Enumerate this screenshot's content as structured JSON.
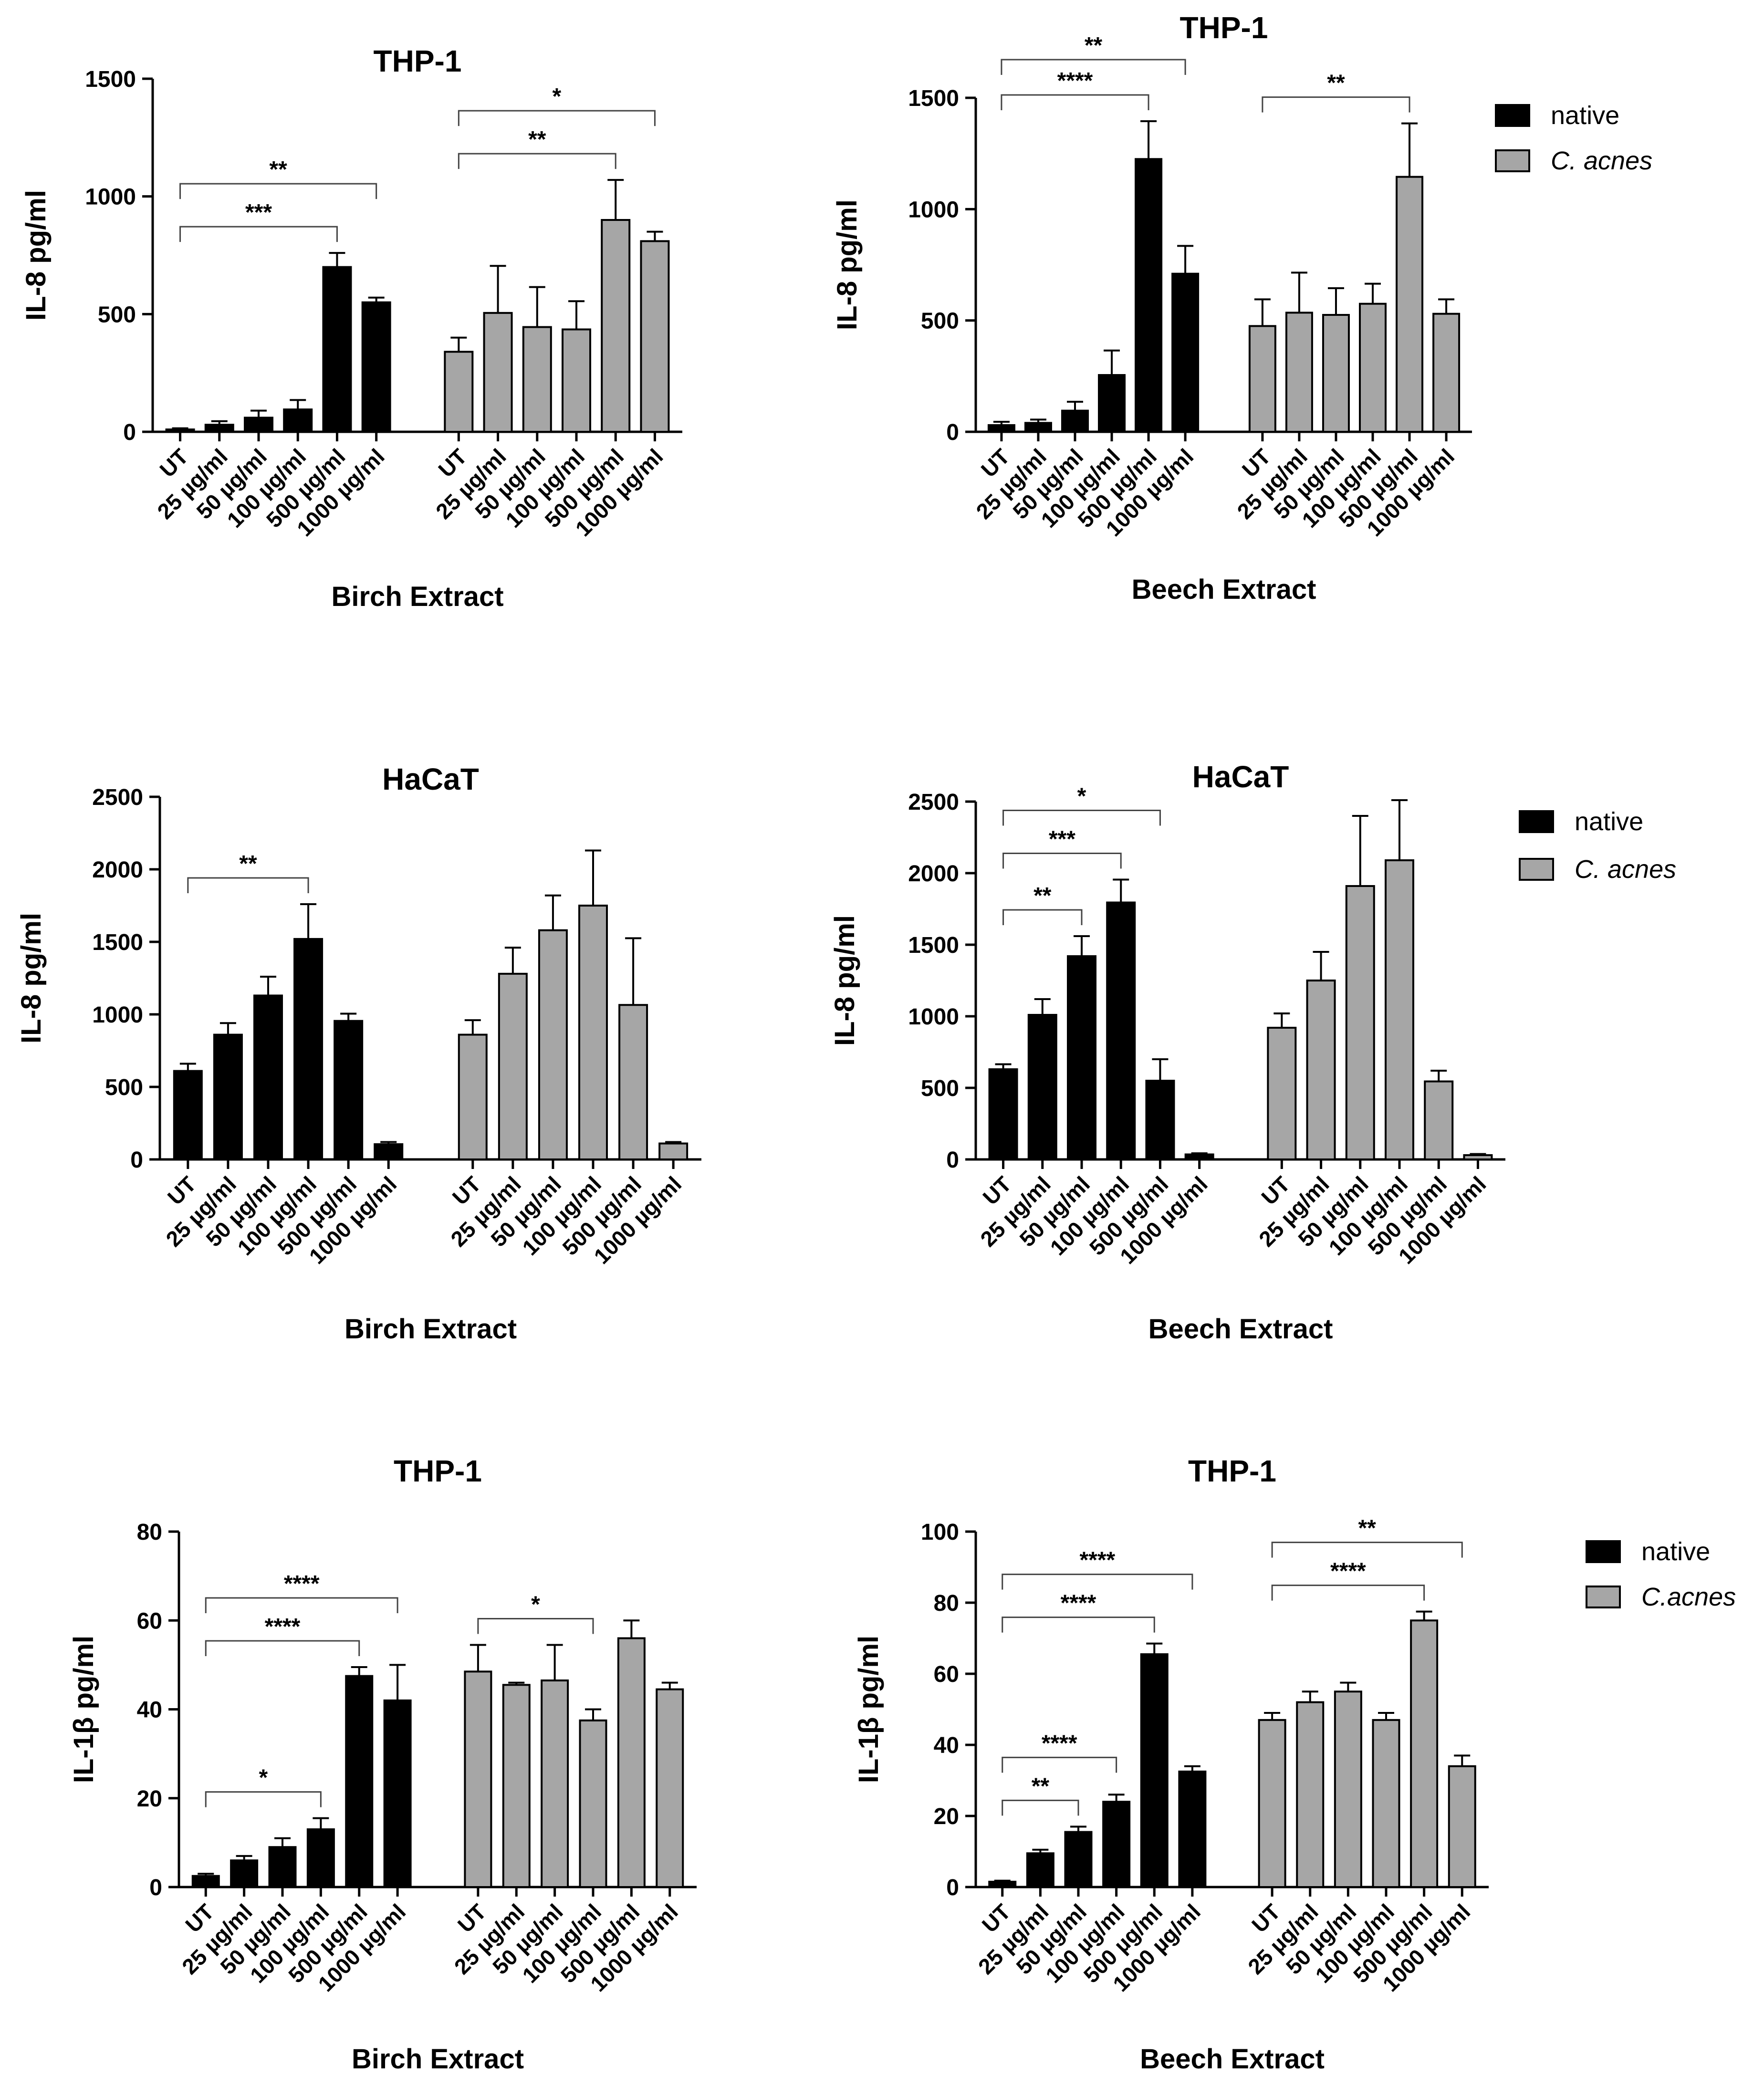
{
  "chart_data": [
    {
      "type": "bar",
      "title": "THP-1",
      "ylabel": "IL-8 pg/ml",
      "xlabel": "Birch Extract",
      "ylim": [
        0,
        1500
      ],
      "yticks": [
        0,
        500,
        1000,
        1500
      ],
      "categories": [
        "UT",
        "25 µg/ml",
        "50 µg/ml",
        "100 µg/ml",
        "500 µg/ml",
        "1000 µg/ml"
      ],
      "series": [
        {
          "name": "native",
          "color": "#000000",
          "values": [
            10,
            30,
            60,
            95,
            700,
            550
          ],
          "errors": [
            5,
            15,
            30,
            40,
            60,
            20
          ]
        },
        {
          "name": "C. acnes",
          "color": "#a6a6a6",
          "values": [
            340,
            505,
            445,
            435,
            900,
            810
          ],
          "errors": [
            60,
            200,
            170,
            120,
            170,
            40
          ]
        }
      ],
      "brackets": [
        {
          "from": [
            0,
            0
          ],
          "to": [
            0,
            4
          ],
          "label": "***"
        },
        {
          "from": [
            0,
            0
          ],
          "to": [
            0,
            5
          ],
          "label": "**"
        },
        {
          "from": [
            1,
            0
          ],
          "to": [
            1,
            4
          ],
          "label": "**"
        },
        {
          "from": [
            1,
            0
          ],
          "to": [
            1,
            5
          ],
          "label": "*"
        }
      ],
      "legend": null
    },
    {
      "type": "bar",
      "title": "THP-1",
      "ylabel": "IL-8 pg/ml",
      "xlabel": "Beech Extract",
      "ylim": [
        0,
        1500
      ],
      "yticks": [
        0,
        500,
        1000,
        1500
      ],
      "categories": [
        "UT",
        "25 µg/ml",
        "50 µg/ml",
        "100 µg/ml",
        "500 µg/ml",
        "1000 µg/ml"
      ],
      "series": [
        {
          "name": "native",
          "color": "#000000",
          "values": [
            30,
            40,
            95,
            255,
            1225,
            710
          ],
          "errors": [
            15,
            15,
            40,
            110,
            170,
            125
          ]
        },
        {
          "name": "C. acnes",
          "color": "#a6a6a6",
          "values": [
            475,
            535,
            525,
            575,
            1145,
            530
          ],
          "errors": [
            120,
            180,
            120,
            90,
            240,
            65
          ]
        }
      ],
      "brackets": [
        {
          "from": [
            0,
            0
          ],
          "to": [
            0,
            4
          ],
          "label": "****"
        },
        {
          "from": [
            0,
            0
          ],
          "to": [
            0,
            5
          ],
          "label": "**"
        },
        {
          "from": [
            1,
            0
          ],
          "to": [
            1,
            4
          ],
          "label": "**"
        }
      ],
      "legend": {
        "position": "top-right",
        "entries": [
          {
            "label": "native",
            "italic": false
          },
          {
            "label": "C. acnes",
            "italic": true
          }
        ]
      }
    },
    {
      "type": "bar",
      "title": "HaCaT",
      "ylabel": "IL-8 pg/ml",
      "xlabel": "Birch Extract",
      "ylim": [
        0,
        2500
      ],
      "yticks": [
        0,
        500,
        1000,
        1500,
        2000,
        2500
      ],
      "categories": [
        "UT",
        "25 µg/ml",
        "50 µg/ml",
        "100 µg/ml",
        "500 µg/ml",
        "1000 µg/ml"
      ],
      "series": [
        {
          "name": "native",
          "color": "#000000",
          "values": [
            610,
            860,
            1130,
            1520,
            955,
            105
          ],
          "errors": [
            50,
            80,
            130,
            240,
            50,
            15
          ]
        },
        {
          "name": "C. acnes",
          "color": "#a6a6a6",
          "values": [
            860,
            1280,
            1580,
            1750,
            1065,
            110
          ],
          "errors": [
            100,
            180,
            240,
            380,
            460,
            10
          ]
        }
      ],
      "brackets": [
        {
          "from": [
            0,
            0
          ],
          "to": [
            0,
            3
          ],
          "label": "**"
        }
      ],
      "legend": null
    },
    {
      "type": "bar",
      "title": "HaCaT",
      "ylabel": "IL-8 pg/ml",
      "xlabel": "Beech Extract",
      "ylim": [
        0,
        2500
      ],
      "yticks": [
        0,
        500,
        1000,
        1500,
        2000,
        2500
      ],
      "categories": [
        "UT",
        "25 µg/ml",
        "50 µg/ml",
        "100 µg/ml",
        "500 µg/ml",
        "1000 µg/ml"
      ],
      "series": [
        {
          "name": "native",
          "color": "#000000",
          "values": [
            630,
            1010,
            1420,
            1795,
            550,
            35
          ],
          "errors": [
            35,
            110,
            140,
            160,
            150,
            8
          ]
        },
        {
          "name": "C. acnes",
          "color": "#a6a6a6",
          "values": [
            920,
            1250,
            1910,
            2090,
            545,
            30
          ],
          "errors": [
            100,
            200,
            490,
            420,
            75,
            8
          ]
        }
      ],
      "brackets": [
        {
          "from": [
            0,
            0
          ],
          "to": [
            0,
            2
          ],
          "label": "**"
        },
        {
          "from": [
            0,
            0
          ],
          "to": [
            0,
            3
          ],
          "label": "***"
        },
        {
          "from": [
            0,
            0
          ],
          "to": [
            0,
            4
          ],
          "label": "*"
        }
      ],
      "legend": {
        "position": "top-right",
        "entries": [
          {
            "label": "native",
            "italic": false
          },
          {
            "label": "C. acnes",
            "italic": true
          }
        ]
      }
    },
    {
      "type": "bar",
      "title": "THP-1",
      "ylabel": "IL-1β pg/ml",
      "xlabel": "Birch Extract",
      "ylim": [
        0,
        80
      ],
      "yticks": [
        0,
        20,
        40,
        60,
        80
      ],
      "categories": [
        "UT",
        "25 µg/ml",
        "50 µg/ml",
        "100 µg/ml",
        "500 µg/ml",
        "1000 µg/ml"
      ],
      "series": [
        {
          "name": "native",
          "color": "#000000",
          "values": [
            2.5,
            6,
            9,
            13,
            47.5,
            42
          ],
          "errors": [
            0.5,
            1,
            2,
            2.5,
            2,
            8
          ]
        },
        {
          "name": "C. acnes",
          "color": "#a6a6a6",
          "values": [
            48.5,
            45.5,
            46.5,
            37.5,
            56,
            44.5
          ],
          "errors": [
            6,
            0.5,
            8,
            2.5,
            4,
            1.5
          ]
        }
      ],
      "brackets": [
        {
          "from": [
            0,
            0
          ],
          "to": [
            0,
            3
          ],
          "label": "*"
        },
        {
          "from": [
            0,
            0
          ],
          "to": [
            0,
            4
          ],
          "label": "****"
        },
        {
          "from": [
            0,
            0
          ],
          "to": [
            0,
            5
          ],
          "label": "****"
        },
        {
          "from": [
            1,
            0
          ],
          "to": [
            1,
            3
          ],
          "label": "*"
        }
      ],
      "legend": null
    },
    {
      "type": "bar",
      "title": "THP-1",
      "ylabel": "IL-1β pg/ml",
      "xlabel": "Beech Extract",
      "ylim": [
        0,
        100
      ],
      "yticks": [
        0,
        20,
        40,
        60,
        80,
        100
      ],
      "categories": [
        "UT",
        "25 µg/ml",
        "50 µg/ml",
        "100 µg/ml",
        "500 µg/ml",
        "1000 µg/ml"
      ],
      "series": [
        {
          "name": "native",
          "color": "#000000",
          "values": [
            1.5,
            9.5,
            15.5,
            24,
            65.5,
            32.5
          ],
          "errors": [
            0.3,
            1,
            1.5,
            2,
            3,
            1.5
          ]
        },
        {
          "name": "C.acnes",
          "color": "#a6a6a6",
          "values": [
            47,
            52,
            55,
            47,
            75,
            34
          ],
          "errors": [
            2,
            3,
            2.5,
            2,
            2.5,
            3
          ]
        }
      ],
      "brackets": [
        {
          "from": [
            0,
            0
          ],
          "to": [
            0,
            2
          ],
          "label": "**"
        },
        {
          "from": [
            0,
            0
          ],
          "to": [
            0,
            3
          ],
          "label": "****"
        },
        {
          "from": [
            0,
            0
          ],
          "to": [
            0,
            4
          ],
          "label": "****"
        },
        {
          "from": [
            0,
            0
          ],
          "to": [
            0,
            5
          ],
          "label": "****"
        },
        {
          "from": [
            1,
            0
          ],
          "to": [
            1,
            4
          ],
          "label": "****"
        },
        {
          "from": [
            1,
            0
          ],
          "to": [
            1,
            5
          ],
          "label": "**"
        }
      ],
      "legend": {
        "position": "top-right",
        "entries": [
          {
            "label": "native",
            "italic": false
          },
          {
            "label": "C.acnes",
            "italic": true
          }
        ]
      }
    }
  ]
}
